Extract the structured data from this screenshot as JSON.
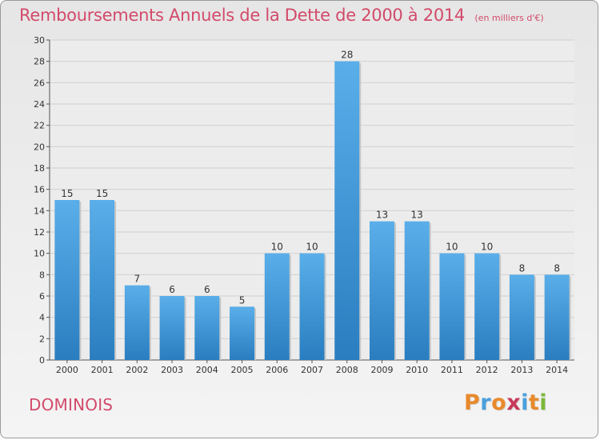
{
  "header": {
    "title": "Remboursements Annuels de la Dette de 2000 à 2014",
    "subtitle": "(en milliers d'€)"
  },
  "footer": {
    "commune": "DOMINOIS",
    "brand": "Proxiti"
  },
  "colors": {
    "title": "#d24a6a",
    "bar_top": "#5aaee9",
    "bar_bottom": "#2a7ec0",
    "brand_letters": [
      "#e8892b",
      "#4aa0de",
      "#e8892b",
      "#c73a5c",
      "#4aa0de",
      "#e8892b",
      "#7ab83a"
    ]
  },
  "chart_data": {
    "type": "bar",
    "title": "Remboursements Annuels de la Dette de 2000 à 2014",
    "subtitle": "(en milliers d'€)",
    "categories": [
      "2000",
      "2001",
      "2002",
      "2003",
      "2004",
      "2005",
      "2006",
      "2007",
      "2008",
      "2009",
      "2010",
      "2011",
      "2012",
      "2013",
      "2014"
    ],
    "values": [
      15,
      15,
      7,
      6,
      6,
      5,
      10,
      10,
      28,
      13,
      13,
      10,
      10,
      8,
      8
    ],
    "ylim": [
      0,
      30
    ],
    "yticks": [
      0,
      2,
      4,
      6,
      8,
      10,
      12,
      14,
      16,
      18,
      20,
      22,
      24,
      26,
      28,
      30
    ],
    "grid": true,
    "data_labels": true,
    "xlabel": "",
    "ylabel": ""
  }
}
